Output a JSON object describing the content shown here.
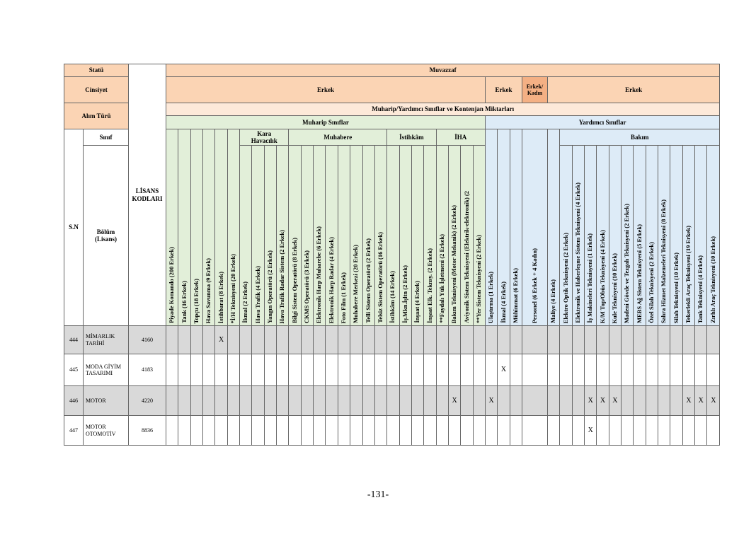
{
  "header": {
    "statu_label": "Statü",
    "statu": "Muvazzaf",
    "cinsiyet_label": "Cinsiyet",
    "cinsiyet": [
      "Erkek",
      "Erkek",
      "Erkek/ Kadın",
      "Erkek"
    ],
    "alim_turu_label": "Alım Türü",
    "siniflar_title": "Muharip/Yardımcı Sınıflar ve Kontenjan Miktarları",
    "sinif_label": "Sınıf",
    "sn_label": "S.N",
    "bolum_label": "Bölüm (Lisans)",
    "lisans_label": "LİSANS KODLARI"
  },
  "muharip": {
    "title": "Muharip Sınıflar",
    "groups": [
      {
        "columns": [
          "Piyade Komando (200 Erkek)",
          "Tank (16 Erkek)",
          "Topçu (18 Erkek)",
          "Hava Savunma (9 Erkek)",
          "İstihbarat (8 Erkek)",
          "*İ/H Teknisyeni (20 Erkek)"
        ]
      },
      {
        "name": "Kara Havacılık",
        "columns": [
          "İkmal (2 Erkek)",
          "Hava Trafik (4 Erkek)",
          "Yangın Operatörü (2 Erkek)",
          "Hava Trafik Radar Sistem (2 Erkek)"
        ]
      },
      {
        "name": "Muhabere",
        "columns": [
          "Bilgi Sistem Operatörü (8 Erkek)",
          "CKMS Operatörü (3 Erkek)",
          "Elektronik Harp Muharebe (6 Erkek)",
          "Elektronik Harp Radar (4 Erkek)",
          "Foto Film (1 Erkek)",
          "Muhabere Merkezi (20 Erkek)",
          "Telli Sistem Operatörü (2 Erkek)",
          "Telsiz Sistem Operatörü (16 Erkek)"
        ]
      },
      {
        "name": "İstihkâm",
        "columns": [
          "İstihkâm (14 Erkek)",
          "İş.Mkn.İşltn (2 Erkek)",
          "İnşaat (4 Erkek)",
          "İnşaat Elk. Teknsy. (2 Erkek)"
        ]
      },
      {
        "name": "İHA",
        "columns": [
          "**Faydalı Yük İşletmeni (2 Erkek)",
          "Bakım Teknisyeni (Motor Mekanik) (2 Erkek)",
          "Aviyonik Sistem Teknisyeni (Elektrik-elektronik) (2",
          "**Yer Sistem Teknisyeni (2 Erkek)"
        ]
      }
    ]
  },
  "yardimci": {
    "title": "Yardımcı Sınıflar",
    "groups": [
      {
        "columns": [
          "Ulaştırma (1 Erkek)",
          "İkmal (4 Erkek)",
          "Mühimmat (6 Erkek)",
          "Personel (6 Erkek + 4 Kadın)",
          "Maliye (4 Erkek)"
        ]
      },
      {
        "name": "Bakım",
        "columns": [
          "Elektro Optik Teknisyeni (2 Erkek)",
          "Elektronik ve Haberleşme Sistem Teknisyeni (4 Erkek)",
          "İş Makineleri Teknisyeni (1 Erkek)",
          "K/M Top/Obüs Teknisyeni (4 Erkek)",
          "Kule Teknisyeni (10 Erkek)",
          "Madeni Gövde ve Tezgah Teknisyeni (2 Erkek)",
          "MEBS Ağ Sistem Teknisyeni (5 Erkek)",
          "Özel Silah Teknisyeni (2 Erkek)",
          "Sahra Hizmet Malzemeleri Teknisyeni (8 Erkek)",
          "Silah Teknisyeni (10 Erkek)",
          "Tekerlekli Araç Teknisyeni (19 Erkek)",
          "Tank Teknisyeni (4 Erkek)",
          "Zırhlı Araç Teknisyeni (10 Erkek)"
        ]
      }
    ]
  },
  "rows": [
    {
      "sn": "444",
      "bolum": "MİMARLIK TARİHİ",
      "kod": "4160",
      "cells": [
        null,
        null,
        null,
        null,
        "X",
        null,
        null,
        null,
        null,
        null,
        null,
        null,
        null,
        null,
        null,
        null,
        null,
        null,
        null,
        null,
        null,
        null,
        null,
        null,
        null,
        null,
        null,
        null,
        null,
        null,
        null,
        null,
        null,
        null,
        null,
        null,
        null,
        null,
        null,
        null,
        null,
        null,
        null,
        null
      ]
    },
    {
      "sn": "445",
      "bolum": "MODA GİYİM TASARIMI",
      "kod": "4183",
      "cells": [
        null,
        null,
        null,
        null,
        null,
        null,
        null,
        null,
        null,
        null,
        null,
        null,
        null,
        null,
        null,
        null,
        null,
        null,
        null,
        null,
        null,
        null,
        null,
        null,
        null,
        null,
        null,
        "X",
        null,
        null,
        null,
        null,
        null,
        null,
        null,
        null,
        null,
        null,
        null,
        null,
        null,
        null,
        null,
        null
      ]
    },
    {
      "sn": "446",
      "bolum": "MOTOR",
      "kod": "4220",
      "cells": [
        null,
        null,
        null,
        null,
        null,
        null,
        null,
        null,
        null,
        null,
        null,
        null,
        null,
        null,
        null,
        null,
        null,
        null,
        null,
        null,
        null,
        null,
        null,
        "X",
        null,
        null,
        "X",
        null,
        null,
        null,
        null,
        null,
        null,
        "X",
        "X",
        "X",
        null,
        null,
        null,
        null,
        null,
        "X",
        "X",
        "X"
      ]
    },
    {
      "sn": "447",
      "bolum": "MOTOR OTOMOTİV",
      "kod": "8836",
      "cells": [
        null,
        null,
        null,
        null,
        null,
        null,
        null,
        null,
        null,
        null,
        null,
        null,
        null,
        null,
        null,
        null,
        null,
        null,
        null,
        null,
        null,
        null,
        null,
        null,
        null,
        null,
        null,
        null,
        null,
        null,
        null,
        null,
        null,
        "X",
        null,
        null,
        null,
        null,
        null,
        null,
        null,
        null,
        null,
        null
      ]
    }
  ],
  "page_number": "-131-"
}
